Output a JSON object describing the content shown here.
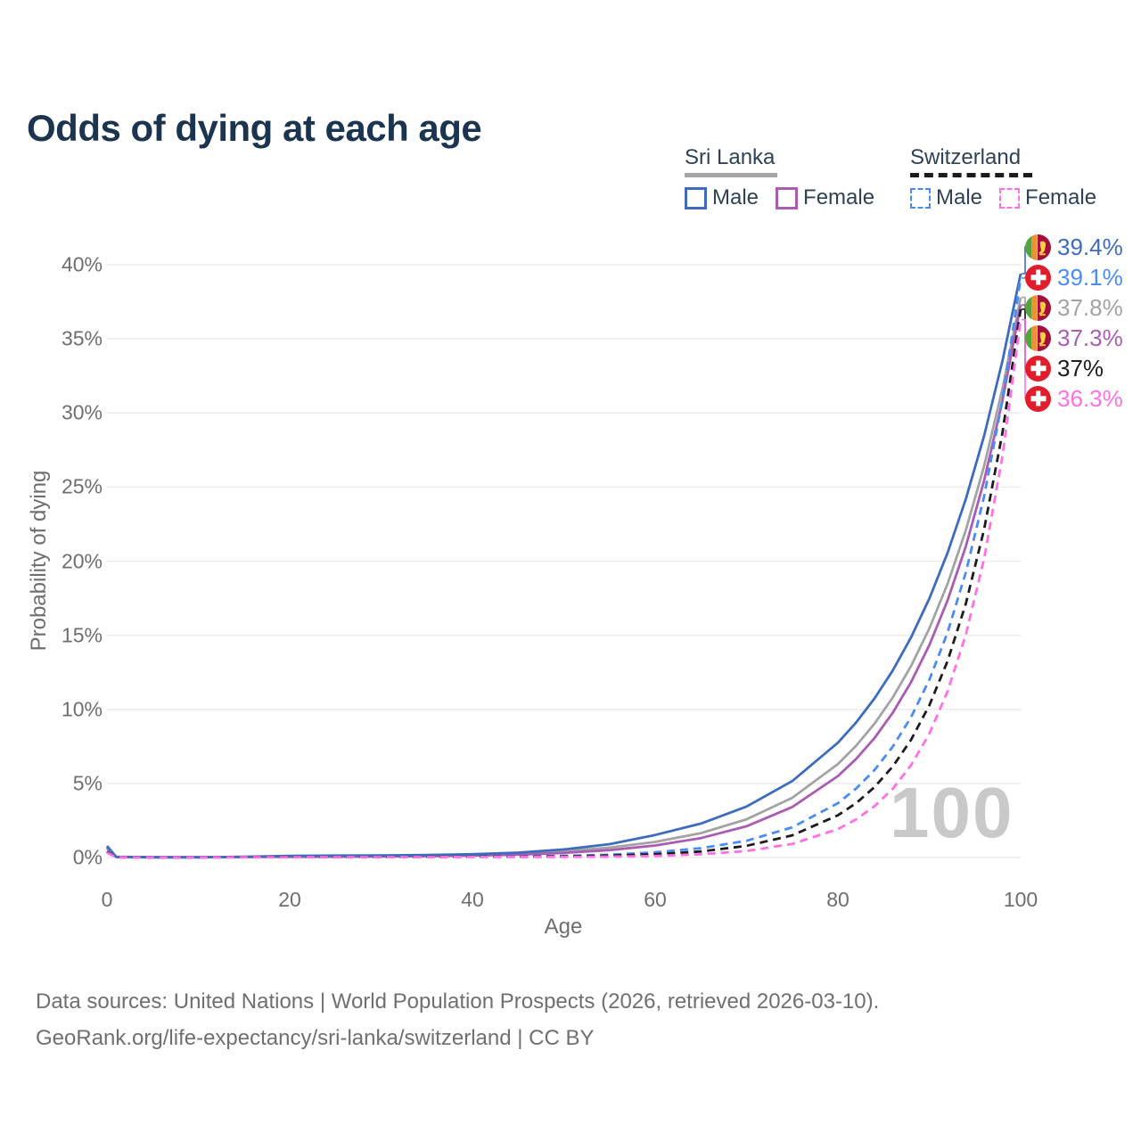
{
  "title": "Odds of dying at each age",
  "legend": {
    "groups": [
      {
        "label": "Sri Lanka",
        "line_style": "solid",
        "underline_color": "#a5a5a5",
        "items": [
          {
            "label": "Male",
            "color": "#3d6cbe",
            "dashed": false
          },
          {
            "label": "Female",
            "color": "#aa5cb3",
            "dashed": false
          }
        ]
      },
      {
        "label": "Switzerland",
        "line_style": "dashed",
        "underline_color": "#1c1c1c",
        "items": [
          {
            "label": "Male",
            "color": "#4a8cf5",
            "dashed": true
          },
          {
            "label": "Female",
            "color": "#ff70e5",
            "dashed": true
          }
        ]
      }
    ]
  },
  "watermark": "100",
  "footer": {
    "line1": "Data sources: United Nations | World Population Prospects (2026, retrieved 2026-03-10).",
    "line2": "GeoRank.org/life-expectancy/sri-lanka/switzerland | CC BY"
  },
  "end_labels": [
    {
      "series": "sl-male",
      "flag": "sri-lanka",
      "value": "39.4%",
      "color": "#3d6cbe"
    },
    {
      "series": "ch-male",
      "flag": "switzerland",
      "value": "39.1%",
      "color": "#4a8cf5"
    },
    {
      "series": "sl-both",
      "flag": "sri-lanka",
      "value": "37.8%",
      "color": "#a3a3a3"
    },
    {
      "series": "sl-female",
      "flag": "sri-lanka",
      "value": "37.3%",
      "color": "#aa5cb3"
    },
    {
      "series": "ch-both",
      "flag": "switzerland",
      "value": "37%",
      "color": "#1c1c1c"
    },
    {
      "series": "ch-female",
      "flag": "switzerland",
      "value": "36.3%",
      "color": "#ff70e5"
    }
  ],
  "chart_data": {
    "type": "line",
    "title": "Odds of dying at each age",
    "xlabel": "Age",
    "ylabel": "Probability of dying",
    "xlim": [
      0,
      100
    ],
    "ylim": [
      0,
      40
    ],
    "grid": "horizontal",
    "legend_position": "top-right",
    "x_ticks": [
      {
        "v": 0,
        "label": "0"
      },
      {
        "v": 20,
        "label": "20"
      },
      {
        "v": 40,
        "label": "40"
      },
      {
        "v": 60,
        "label": "60"
      },
      {
        "v": 80,
        "label": "80"
      },
      {
        "v": 100,
        "label": "100"
      }
    ],
    "y_ticks": [
      {
        "v": 0,
        "label": "0%"
      },
      {
        "v": 5,
        "label": "5%"
      },
      {
        "v": 10,
        "label": "10%"
      },
      {
        "v": 15,
        "label": "15%"
      },
      {
        "v": 20,
        "label": "20%"
      },
      {
        "v": 25,
        "label": "25%"
      },
      {
        "v": 30,
        "label": "30%"
      },
      {
        "v": 35,
        "label": "35%"
      },
      {
        "v": 40,
        "label": "40%"
      }
    ],
    "ages": [
      0,
      1,
      5,
      10,
      15,
      20,
      25,
      30,
      35,
      40,
      45,
      50,
      55,
      60,
      65,
      70,
      75,
      80,
      82,
      84,
      86,
      88,
      90,
      92,
      94,
      96,
      98,
      100
    ],
    "series": [
      {
        "id": "sl-both",
        "name": "Sri Lanka (overall)",
        "country": "Sri Lanka",
        "sex": "overall",
        "color": "#a3a3a3",
        "dashed": false,
        "end_value": 37.8,
        "end_label": "37.8%",
        "values": [
          0.72,
          0.045,
          0.02,
          0.02,
          0.04,
          0.08,
          0.08,
          0.1,
          0.13,
          0.18,
          0.28,
          0.43,
          0.67,
          1.05,
          1.65,
          2.58,
          4.03,
          6.31,
          7.55,
          9.03,
          10.8,
          12.92,
          15.45,
          18.47,
          22.09,
          26.42,
          31.6,
          37.8
        ]
      },
      {
        "id": "sl-female",
        "name": "Sri Lanka Female",
        "country": "Sri Lanka",
        "sex": "female",
        "color": "#aa5cb3",
        "dashed": false,
        "end_value": 37.3,
        "end_label": "37.3%",
        "values": [
          0.65,
          0.04,
          0.018,
          0.018,
          0.035,
          0.05,
          0.055,
          0.07,
          0.09,
          0.13,
          0.2,
          0.31,
          0.5,
          0.81,
          1.31,
          2.11,
          3.41,
          5.5,
          6.66,
          8.06,
          9.77,
          11.83,
          14.32,
          17.35,
          21.0,
          25.44,
          30.8,
          37.3
        ]
      },
      {
        "id": "sl-male",
        "name": "Sri Lanka Male",
        "country": "Sri Lanka",
        "sex": "male",
        "color": "#3d6cbe",
        "dashed": false,
        "end_value": 39.4,
        "end_label": "39.4%",
        "values": [
          0.78,
          0.05,
          0.02,
          0.02,
          0.05,
          0.11,
          0.13,
          0.14,
          0.17,
          0.22,
          0.33,
          0.55,
          0.9,
          1.52,
          2.29,
          3.44,
          5.16,
          7.75,
          9.12,
          10.73,
          12.62,
          14.85,
          17.47,
          20.56,
          24.19,
          28.46,
          33.49,
          39.4
        ]
      },
      {
        "id": "ch-male",
        "name": "Switzerland Male",
        "country": "Switzerland",
        "sex": "male",
        "color": "#4a8cf5",
        "dashed": true,
        "end_value": 39.1,
        "end_label": "39.1%",
        "values": [
          0.42,
          0.02,
          0.012,
          0.012,
          0.03,
          0.05,
          0.055,
          0.06,
          0.065,
          0.07,
          0.08,
          0.11,
          0.19,
          0.35,
          0.63,
          1.13,
          2.04,
          3.67,
          4.66,
          5.9,
          7.48,
          9.47,
          11.99,
          15.19,
          19.24,
          24.37,
          30.87,
          39.1
        ]
      },
      {
        "id": "ch-both",
        "name": "Switzerland (overall)",
        "country": "Switzerland",
        "sex": "overall",
        "color": "#1c1c1c",
        "dashed": true,
        "end_value": 37.0,
        "end_label": "37%",
        "values": [
          0.38,
          0.018,
          0.01,
          0.01,
          0.025,
          0.04,
          0.042,
          0.045,
          0.05,
          0.055,
          0.06,
          0.08,
          0.13,
          0.22,
          0.41,
          0.79,
          1.5,
          2.85,
          3.67,
          4.75,
          6.14,
          7.94,
          10.26,
          13.26,
          17.13,
          22.15,
          28.63,
          37.0
        ]
      },
      {
        "id": "ch-female",
        "name": "Switzerland Female",
        "country": "Switzerland",
        "sex": "female",
        "color": "#ff70e5",
        "dashed": true,
        "end_value": 36.3,
        "end_label": "36.3%",
        "values": [
          0.33,
          0.015,
          0.008,
          0.008,
          0.02,
          0.027,
          0.028,
          0.03,
          0.032,
          0.035,
          0.04,
          0.045,
          0.06,
          0.1,
          0.22,
          0.44,
          0.92,
          1.92,
          2.58,
          3.46,
          4.64,
          6.23,
          8.35,
          11.21,
          15.04,
          20.17,
          27.06,
          36.3
        ]
      }
    ]
  }
}
